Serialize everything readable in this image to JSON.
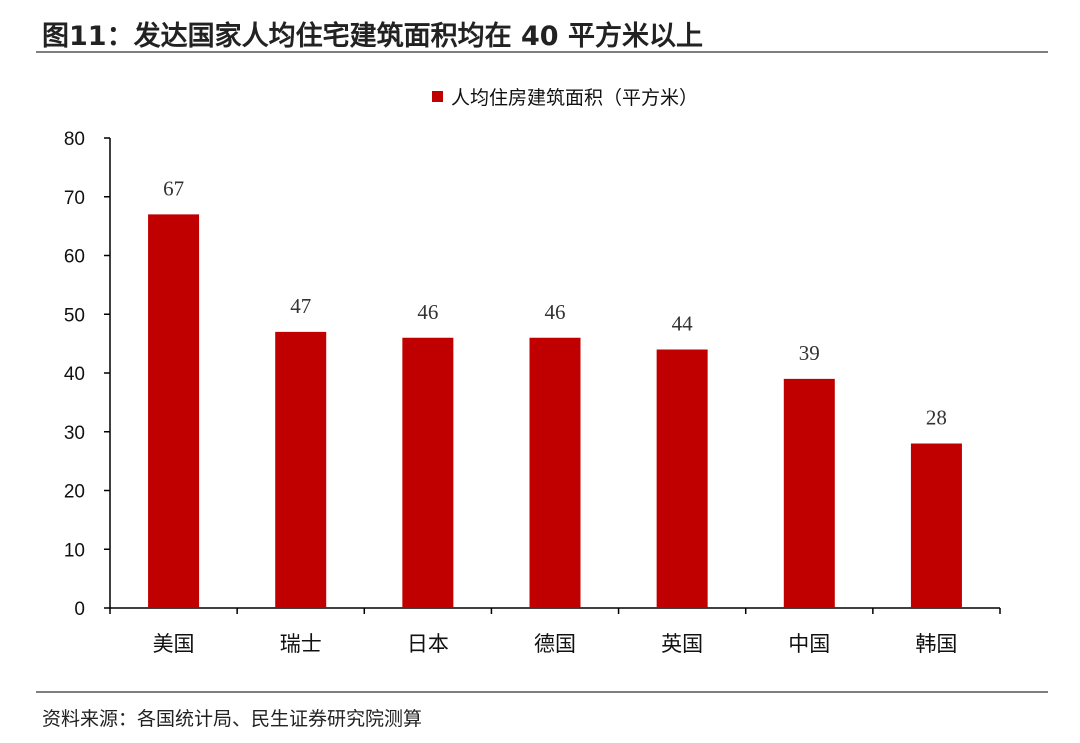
{
  "figure": {
    "title": "图11：发达国家人均住宅建筑面积均在 40 平方米以上",
    "source": "资料来源：各国统计局、民生证券研究院测算"
  },
  "chart_data": {
    "type": "bar",
    "categories": [
      "美国",
      "瑞士",
      "日本",
      "德国",
      "英国",
      "中国",
      "韩国"
    ],
    "series": [
      {
        "name": "人均住房建筑面积（平方米）",
        "values": [
          67,
          47,
          46,
          46,
          44,
          39,
          28
        ],
        "color": "#c00000"
      }
    ],
    "ylim": [
      0,
      80
    ],
    "yticks": [
      0,
      10,
      20,
      30,
      40,
      50,
      60,
      70,
      80
    ],
    "legend_position": "top-center",
    "grid": false,
    "data_labels": true
  }
}
